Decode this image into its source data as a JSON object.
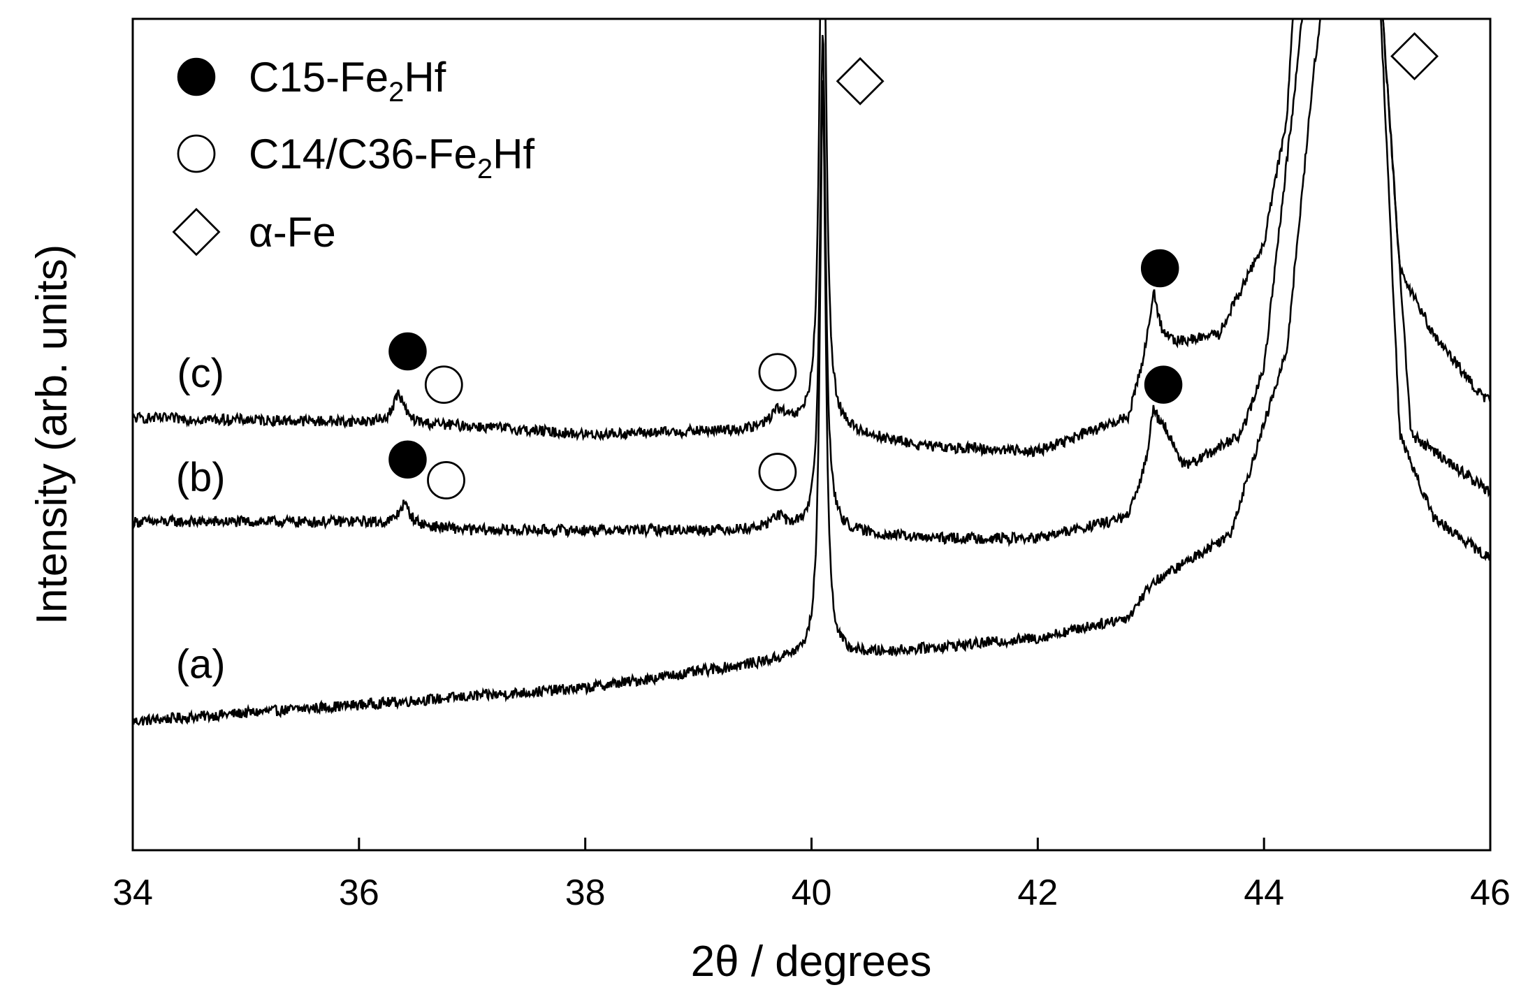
{
  "chart_data": {
    "type": "line",
    "xlabel": "2θ / degrees",
    "ylabel": "Intensity (arb. units)",
    "xlim": [
      34,
      46
    ],
    "ylim": [
      0,
      100
    ],
    "x_ticks": [
      "34",
      "36",
      "38",
      "40",
      "42",
      "44",
      "46"
    ],
    "y_ticks": [],
    "grid": false,
    "legend_position": "top-left",
    "line_color": "#000000",
    "legend": [
      {
        "symbol": "filled-circle",
        "label": "C15-Fe",
        "sub": "2",
        "label_end": "Hf"
      },
      {
        "symbol": "open-circle",
        "label": "C14/C36-Fe",
        "sub": "2",
        "label_end": "Hf"
      },
      {
        "symbol": "open-diamond",
        "label": "α-Fe",
        "sub": "",
        "label_end": ""
      }
    ],
    "series": [
      {
        "name": "(a)",
        "baseline": [
          [
            34,
            15.5
          ],
          [
            36,
            17.5
          ],
          [
            38,
            19.5
          ],
          [
            39.8,
            23
          ],
          [
            40.0,
            23
          ],
          [
            42,
            25.5
          ],
          [
            42.8,
            28
          ],
          [
            43.0,
            32
          ],
          [
            43.7,
            38
          ],
          [
            44.2,
            60
          ],
          [
            44.45,
            95
          ],
          [
            44.6,
            110
          ],
          [
            45.0,
            110
          ],
          [
            45.2,
            50
          ],
          [
            45.5,
            40
          ],
          [
            45.9,
            36
          ],
          [
            46,
            35
          ]
        ],
        "peaks": [
          {
            "x": 40.1,
            "height": 70,
            "width": 0.03
          }
        ]
      },
      {
        "name": "(b)",
        "baseline": [
          [
            34,
            39.5
          ],
          [
            36,
            39.5
          ],
          [
            37,
            38.5
          ],
          [
            38,
            38.5
          ],
          [
            39.5,
            38.5
          ],
          [
            40.0,
            38.5
          ],
          [
            41,
            37.5
          ],
          [
            42,
            37.5
          ],
          [
            42.8,
            40
          ],
          [
            43.1,
            51
          ],
          [
            43.3,
            46
          ],
          [
            43.8,
            50
          ],
          [
            44.0,
            58
          ],
          [
            44.3,
            95
          ],
          [
            44.4,
            110
          ],
          [
            45.0,
            110
          ],
          [
            45.3,
            50
          ],
          [
            45.6,
            47
          ],
          [
            45.9,
            44
          ],
          [
            46,
            43
          ]
        ],
        "peaks": [
          {
            "x": 36.4,
            "height": 2.5,
            "width": 0.06
          },
          {
            "x": 39.7,
            "height": 1.5,
            "width": 0.08
          },
          {
            "x": 40.1,
            "height": 60,
            "width": 0.03
          },
          {
            "x": 43.02,
            "height": 5,
            "width": 0.04
          }
        ]
      },
      {
        "name": "(c)",
        "baseline": [
          [
            34,
            52
          ],
          [
            36,
            51.5
          ],
          [
            37,
            51
          ],
          [
            38,
            50
          ],
          [
            39.5,
            50.5
          ],
          [
            40.0,
            51
          ],
          [
            41,
            48.5
          ],
          [
            42,
            48
          ],
          [
            42.8,
            52
          ],
          [
            43.0,
            62
          ],
          [
            43.2,
            61
          ],
          [
            43.6,
            62
          ],
          [
            44.0,
            73
          ],
          [
            44.2,
            88
          ],
          [
            44.3,
            110
          ],
          [
            45.0,
            110
          ],
          [
            45.2,
            70
          ],
          [
            45.5,
            62
          ],
          [
            45.9,
            55
          ],
          [
            46,
            54
          ]
        ],
        "peaks": [
          {
            "x": 36.35,
            "height": 3.5,
            "width": 0.06
          },
          {
            "x": 39.7,
            "height": 2.0,
            "width": 0.08
          },
          {
            "x": 40.1,
            "height": 80,
            "width": 0.03
          },
          {
            "x": 43.03,
            "height": 5,
            "width": 0.04
          }
        ]
      }
    ],
    "series_labels": [
      {
        "text": "(a)",
        "x": 34.6,
        "y": 22
      },
      {
        "text": "(b)",
        "x": 34.6,
        "y": 44.5
      },
      {
        "text": "(c)",
        "x": 34.6,
        "y": 57
      }
    ],
    "markers": [
      {
        "symbol": "filled-circle",
        "x": 36.43,
        "y": 60
      },
      {
        "symbol": "open-circle",
        "x": 36.75,
        "y": 56
      },
      {
        "symbol": "filled-circle",
        "x": 36.43,
        "y": 47
      },
      {
        "symbol": "open-circle",
        "x": 36.77,
        "y": 44.5
      },
      {
        "symbol": "open-circle",
        "x": 39.7,
        "y": 57.5
      },
      {
        "symbol": "open-circle",
        "x": 39.7,
        "y": 45.5
      },
      {
        "symbol": "open-diamond",
        "x": 40.43,
        "y": 92.5
      },
      {
        "symbol": "filled-circle",
        "x": 43.08,
        "y": 70
      },
      {
        "symbol": "filled-circle",
        "x": 43.11,
        "y": 56
      },
      {
        "symbol": "open-diamond",
        "x": 45.33,
        "y": 95.5
      }
    ]
  }
}
